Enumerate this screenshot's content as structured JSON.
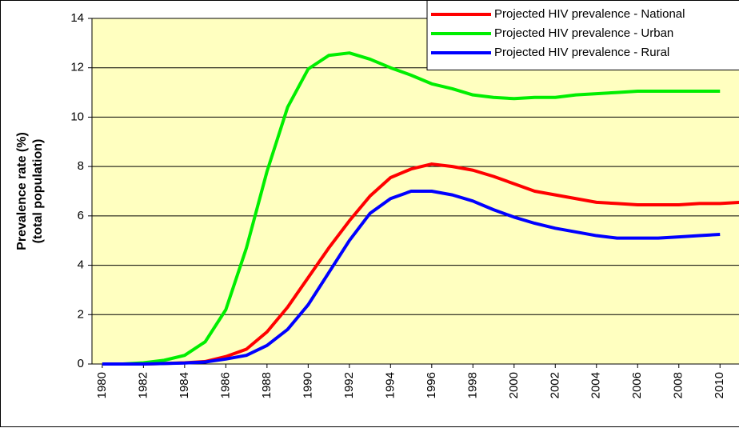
{
  "chart_data": {
    "type": "line",
    "y_label": [
      "Prevalence rate (%)",
      "(total population)"
    ],
    "x": [
      1980,
      1981,
      1982,
      1983,
      1984,
      1985,
      1986,
      1987,
      1988,
      1989,
      1990,
      1991,
      1992,
      1993,
      1994,
      1995,
      1996,
      1997,
      1998,
      1999,
      2000,
      2001,
      2002,
      2003,
      2004,
      2005,
      2006,
      2007,
      2008,
      2009,
      2010,
      2011
    ],
    "series": [
      {
        "name": "Projected HIV prevalence - National",
        "color": "#ff0000",
        "values": [
          0,
          0,
          0,
          0.02,
          0.05,
          0.1,
          0.3,
          0.6,
          1.3,
          2.3,
          3.5,
          4.7,
          5.8,
          6.8,
          7.55,
          7.9,
          8.1,
          8.0,
          7.85,
          7.6,
          7.3,
          7.0,
          6.85,
          6.7,
          6.55,
          6.5,
          6.45,
          6.45,
          6.45,
          6.5,
          6.5,
          6.55
        ]
      },
      {
        "name": "Projected HIV prevalence - Urban",
        "color": "#00ee00",
        "values": [
          0,
          0,
          0.05,
          0.15,
          0.35,
          0.9,
          2.2,
          4.7,
          7.8,
          10.4,
          11.95,
          12.5,
          12.6,
          12.35,
          12.0,
          11.7,
          11.35,
          11.15,
          10.9,
          10.8,
          10.75,
          10.8,
          10.8,
          10.9,
          10.95,
          11.0,
          11.05,
          11.05,
          11.05,
          11.05,
          11.05,
          null
        ]
      },
      {
        "name": "Projected HIV prevalence - Rural",
        "color": "#0000ff",
        "values": [
          0,
          0,
          0,
          0.02,
          0.04,
          0.08,
          0.2,
          0.35,
          0.75,
          1.4,
          2.4,
          3.7,
          5.0,
          6.1,
          6.7,
          7.0,
          7.0,
          6.85,
          6.6,
          6.25,
          5.95,
          5.7,
          5.5,
          5.35,
          5.2,
          5.1,
          5.1,
          5.1,
          5.15,
          5.2,
          5.25,
          null
        ]
      }
    ],
    "xlim": [
      1979.5,
      2011
    ],
    "xticks": [
      1980,
      1982,
      1984,
      1986,
      1988,
      1990,
      1992,
      1994,
      1996,
      1998,
      2000,
      2002,
      2004,
      2006,
      2008,
      2010
    ],
    "ylim": [
      0,
      14
    ],
    "yticks": [
      0,
      2,
      4,
      6,
      8,
      10,
      12,
      14
    ],
    "grid": true,
    "legend": "top-right",
    "plot_background": "#ffffc0"
  }
}
